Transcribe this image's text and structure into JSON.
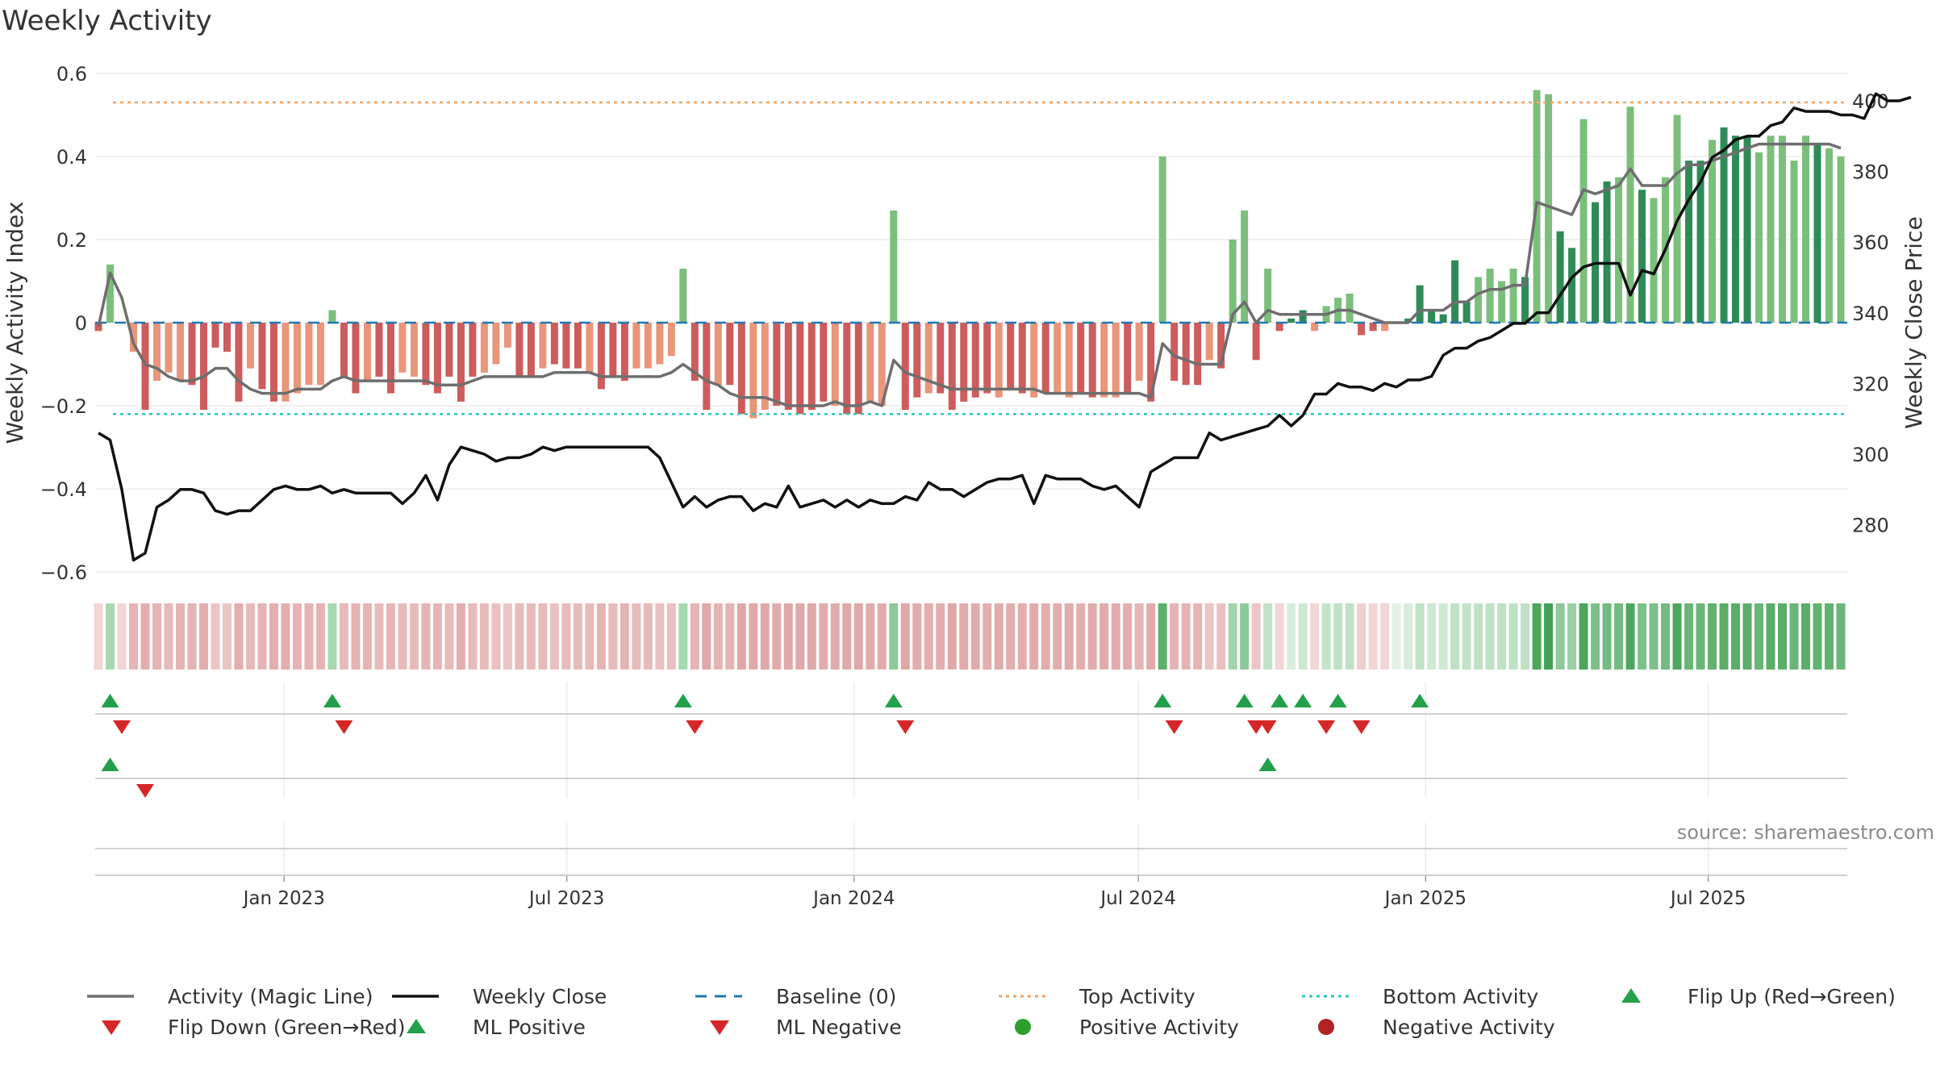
{
  "chart_data": {
    "type": "bar+line",
    "title": "Weekly Activity",
    "ylabel_left": "Weekly Activity Index",
    "ylabel_right": "Weekly Close Price",
    "ylim_left": [
      -0.62,
      0.6
    ],
    "ylim_right": [
      260,
      410
    ],
    "yticks_left": [
      0.6,
      0.4,
      0.2,
      0,
      -0.2,
      -0.4,
      -0.6
    ],
    "ytick_labels_left": [
      "0.6",
      "0.4",
      "0.2",
      "0",
      "−0.2",
      "−0.4",
      "−0.6"
    ],
    "yticks_right": [
      400,
      380,
      360,
      340,
      320,
      300,
      280
    ],
    "ytick_labels_right": [
      "400",
      "380",
      "360",
      "340",
      "320",
      "300",
      "280"
    ],
    "x_start": "2022-09-02",
    "x_end": "2025-09-28",
    "xticks": [
      {
        "date": "2023-01-01",
        "label": "Jan 2023"
      },
      {
        "date": "2023-07-01",
        "label": "Jul 2023"
      },
      {
        "date": "2024-01-01",
        "label": "Jan 2024"
      },
      {
        "date": "2024-07-01",
        "label": "Jul 2024"
      },
      {
        "date": "2025-01-01",
        "label": "Jan 2025"
      },
      {
        "date": "2025-07-01",
        "label": "Jul 2025"
      }
    ],
    "top_activity": 0.53,
    "bottom_activity": -0.22,
    "activity": [
      -0.02,
      0.14,
      0,
      -0.07,
      -0.21,
      -0.14,
      -0.12,
      -0.14,
      -0.15,
      -0.21,
      -0.06,
      -0.07,
      -0.19,
      -0.11,
      -0.16,
      -0.19,
      -0.19,
      -0.17,
      -0.15,
      -0.15,
      0.03,
      -0.13,
      -0.17,
      -0.14,
      -0.13,
      -0.17,
      -0.12,
      -0.13,
      -0.15,
      -0.17,
      -0.13,
      -0.19,
      -0.13,
      -0.12,
      -0.1,
      -0.06,
      -0.13,
      -0.13,
      -0.11,
      -0.1,
      -0.11,
      -0.11,
      -0.12,
      -0.16,
      -0.13,
      -0.14,
      -0.11,
      -0.11,
      -0.1,
      -0.08,
      0.13,
      -0.14,
      -0.21,
      -0.15,
      -0.15,
      -0.22,
      -0.23,
      -0.21,
      -0.2,
      -0.21,
      -0.22,
      -0.21,
      -0.19,
      -0.2,
      -0.22,
      -0.22,
      -0.19,
      -0.2,
      0.27,
      -0.21,
      -0.18,
      -0.17,
      -0.17,
      -0.21,
      -0.19,
      -0.18,
      -0.17,
      -0.18,
      -0.16,
      -0.17,
      -0.18,
      -0.17,
      -0.17,
      -0.18,
      -0.17,
      -0.18,
      -0.18,
      -0.18,
      -0.17,
      -0.14,
      -0.19,
      0.4,
      -0.14,
      -0.15,
      -0.15,
      -0.09,
      -0.11,
      0.2,
      0.27,
      -0.09,
      0.13,
      -0.02,
      0.01,
      0.03,
      -0.02,
      0.04,
      0.06,
      0.07,
      -0.03,
      -0.02,
      -0.02,
      0,
      0.01,
      0.09,
      0.03,
      0.02,
      0.15,
      0.05,
      0.11,
      0.13,
      0.1,
      0.13,
      0.11,
      0.56,
      0.55,
      0.22,
      0.18,
      0.49,
      0.29,
      0.34,
      0.35,
      0.52,
      0.32,
      0.3,
      0.35,
      0.5,
      0.39,
      0.39,
      0.44,
      0.47,
      0.45,
      0.45,
      0.41,
      0.45,
      0.45,
      0.39,
      0.45,
      0.43,
      0.42,
      0.4
    ],
    "magic_line": [
      -0.01,
      0.12,
      0.06,
      -0.05,
      -0.1,
      -0.11,
      -0.13,
      -0.14,
      -0.14,
      -0.13,
      -0.11,
      -0.11,
      -0.14,
      -0.16,
      -0.17,
      -0.17,
      -0.17,
      -0.16,
      -0.16,
      -0.16,
      -0.14,
      -0.13,
      -0.14,
      -0.14,
      -0.14,
      -0.14,
      -0.14,
      -0.14,
      -0.14,
      -0.15,
      -0.15,
      -0.15,
      -0.14,
      -0.13,
      -0.13,
      -0.13,
      -0.13,
      -0.13,
      -0.13,
      -0.12,
      -0.12,
      -0.12,
      -0.12,
      -0.13,
      -0.13,
      -0.13,
      -0.13,
      -0.13,
      -0.13,
      -0.12,
      -0.1,
      -0.12,
      -0.14,
      -0.15,
      -0.17,
      -0.18,
      -0.18,
      -0.18,
      -0.19,
      -0.2,
      -0.2,
      -0.2,
      -0.2,
      -0.19,
      -0.2,
      -0.2,
      -0.19,
      -0.2,
      -0.09,
      -0.12,
      -0.13,
      -0.14,
      -0.15,
      -0.16,
      -0.16,
      -0.16,
      -0.16,
      -0.16,
      -0.16,
      -0.16,
      -0.16,
      -0.17,
      -0.17,
      -0.17,
      -0.17,
      -0.17,
      -0.17,
      -0.17,
      -0.17,
      -0.17,
      -0.18,
      -0.05,
      -0.08,
      -0.09,
      -0.1,
      -0.1,
      -0.1,
      0.02,
      0.05,
      0,
      0.03,
      0.02,
      0.02,
      0.02,
      0.02,
      0.02,
      0.03,
      0.03,
      0.02,
      0.01,
      0,
      0,
      0,
      0.03,
      0.03,
      0.03,
      0.05,
      0.05,
      0.07,
      0.08,
      0.08,
      0.09,
      0.09,
      0.29,
      0.28,
      0.27,
      0.26,
      0.32,
      0.31,
      0.32,
      0.33,
      0.37,
      0.33,
      0.33,
      0.33,
      0.36,
      0.38,
      0.38,
      0.39,
      0.4,
      0.41,
      0.42,
      0.43,
      0.43,
      0.43,
      0.43,
      0.43,
      0.43,
      0.43,
      0.42
    ],
    "close": [
      306,
      304,
      290,
      270,
      272,
      285,
      287,
      290,
      290,
      289,
      284,
      283,
      284,
      284,
      287,
      290,
      291,
      290,
      290,
      291,
      289,
      290,
      289,
      289,
      289,
      289,
      286,
      289,
      294,
      287,
      297,
      302,
      301,
      300,
      298,
      299,
      299,
      300,
      302,
      301,
      302,
      302,
      302,
      302,
      302,
      302,
      302,
      302,
      299,
      292,
      285,
      288,
      285,
      287,
      288,
      288,
      284,
      286,
      285,
      291,
      285,
      286,
      287,
      285,
      287,
      285,
      287,
      286,
      286,
      288,
      287,
      292,
      290,
      290,
      288,
      290,
      292,
      293,
      293,
      294,
      286,
      294,
      293,
      293,
      293,
      291,
      290,
      291,
      288,
      285,
      295,
      297,
      299,
      299,
      299,
      306,
      304,
      305,
      306,
      307,
      308,
      311,
      308,
      311,
      317,
      317,
      320,
      319,
      319,
      318,
      320,
      319,
      321,
      321,
      322,
      328,
      330,
      330,
      332,
      333,
      335,
      337,
      337,
      340,
      340,
      345,
      350,
      353,
      354,
      354,
      354,
      345,
      352,
      351,
      358,
      366,
      372,
      377,
      384,
      386,
      389,
      390,
      390,
      393,
      394,
      398,
      397,
      397,
      397,
      396,
      396,
      395,
      402,
      400,
      400,
      401
    ],
    "heat_colors": [
      "#f2d6d6",
      "#a8d8b0",
      "#f2d6d6",
      "#e6b4b4",
      "#e4aeae",
      "#e6b4b4",
      "#e8bbbb",
      "#e6b4b4",
      "#e6b4b4",
      "#e4aeae",
      "#ecc5c5",
      "#ecc5c5",
      "#e4aeae",
      "#e8bbbb",
      "#e6b4b4",
      "#e4aeae",
      "#e4aeae",
      "#e6b4b4",
      "#e6b4b4",
      "#e6b4b4",
      "#a8d8b0",
      "#e8bbbb",
      "#e6b4b4",
      "#e6b4b4",
      "#e8bbbb",
      "#e6b4b4",
      "#e8bbbb",
      "#e8bbbb",
      "#e6b4b4",
      "#e6b4b4",
      "#e8bbbb",
      "#e4aeae",
      "#e8bbbb",
      "#e8bbbb",
      "#eac0c0",
      "#ecc5c5",
      "#e8bbbb",
      "#e8bbbb",
      "#e8bbbb",
      "#eac0c0",
      "#e8bbbb",
      "#e8bbbb",
      "#e8bbbb",
      "#e6b4b4",
      "#e8bbbb",
      "#e6b4b4",
      "#e8bbbb",
      "#e8bbbb",
      "#eac0c0",
      "#eac0c0",
      "#a8d8b0",
      "#e6b4b4",
      "#e0a8a8",
      "#e6b4b4",
      "#e6b4b4",
      "#e0a8a8",
      "#e0a8a8",
      "#e0a8a8",
      "#e2acac",
      "#e0a8a8",
      "#e0a8a8",
      "#e0a8a8",
      "#e2acac",
      "#e2acac",
      "#e0a8a8",
      "#e0a8a8",
      "#e2acac",
      "#e2acac",
      "#8ec99a",
      "#e0a8a8",
      "#e2acac",
      "#e4aeae",
      "#e4aeae",
      "#e0a8a8",
      "#e2acac",
      "#e2acac",
      "#e4aeae",
      "#e2acac",
      "#e4aeae",
      "#e4aeae",
      "#e2acac",
      "#e4aeae",
      "#e4aeae",
      "#e2acac",
      "#e4aeae",
      "#e2acac",
      "#e2acac",
      "#e2acac",
      "#e4aeae",
      "#e6b4b4",
      "#e2acac",
      "#5fb06c",
      "#e6b4b4",
      "#e6b4b4",
      "#e6b4b4",
      "#ecc5c5",
      "#eac0c0",
      "#a3d4ab",
      "#8ec99a",
      "#ecc5c5",
      "#bfe2c5",
      "#f2d6d6",
      "#d8eedc",
      "#cde9d2",
      "#f2d6d6",
      "#c4e4c9",
      "#bfe2c5",
      "#bfe2c5",
      "#f0cfcf",
      "#f2d6d6",
      "#f2d6d6",
      "#e4f2e6",
      "#d8eedc",
      "#bfe2c5",
      "#cde9d2",
      "#cde9d2",
      "#bfe2c5",
      "#c4e4c9",
      "#bfe2c5",
      "#bfe2c5",
      "#bfe2c5",
      "#bfe2c5",
      "#bfe2c5",
      "#4da65c",
      "#43a155",
      "#8ec99a",
      "#9bd0a4",
      "#4da65c",
      "#7dc08a",
      "#73bb80",
      "#73bb80",
      "#4da65c",
      "#7dc08a",
      "#7dc08a",
      "#73bb80",
      "#4da65c",
      "#6ab678",
      "#6ab678",
      "#62b270",
      "#5aae69",
      "#5aae69",
      "#5aae69",
      "#6ab678",
      "#5aae69",
      "#5aae69",
      "#6ab678",
      "#5aae69",
      "#62b270",
      "#62b270",
      "#6ab678"
    ],
    "bar_shades": [
      1,
      0,
      1,
      0,
      1,
      0,
      0,
      0,
      1,
      1,
      1,
      1,
      1,
      0,
      1,
      1,
      0,
      0,
      0,
      0,
      0,
      1,
      1,
      0,
      1,
      1,
      0,
      0,
      1,
      1,
      1,
      1,
      1,
      0,
      0,
      0,
      1,
      1,
      0,
      1,
      1,
      1,
      0,
      1,
      1,
      1,
      0,
      0,
      0,
      0,
      0,
      1,
      1,
      0,
      1,
      1,
      0,
      0,
      1,
      1,
      1,
      1,
      1,
      0,
      1,
      1,
      0,
      0,
      0,
      1,
      1,
      0,
      1,
      1,
      1,
      1,
      1,
      0,
      1,
      1,
      0,
      1,
      0,
      0,
      1,
      1,
      0,
      0,
      1,
      0,
      1,
      0,
      1,
      1,
      1,
      0,
      1,
      0,
      0,
      1,
      0,
      1,
      1,
      1,
      0,
      0,
      0,
      0,
      1,
      1,
      0,
      1,
      1,
      1,
      1,
      1,
      1,
      1,
      0,
      0,
      0,
      0,
      1,
      0,
      0,
      1,
      1,
      0,
      1,
      1,
      0,
      0,
      1,
      0,
      0,
      0,
      1,
      1,
      0,
      1,
      1,
      1,
      0,
      0,
      0,
      0,
      0,
      1,
      0,
      0,
      1,
      0
    ],
    "flip_up": [
      1,
      20,
      50,
      68,
      91,
      98,
      101,
      103,
      106,
      113
    ],
    "flip_down": [
      2,
      21,
      51,
      69,
      92,
      99,
      100,
      105,
      108
    ],
    "ml_positive": [
      1,
      100
    ],
    "ml_negative": [
      4
    ],
    "legend": [
      {
        "label": "Activity (Magic Line)",
        "symbol": "line",
        "color": "#6e6e6e"
      },
      {
        "label": "Weekly Close",
        "symbol": "line",
        "color": "#111111"
      },
      {
        "label": "Baseline (0)",
        "symbol": "dash",
        "color": "#1f77b4"
      },
      {
        "label": "Top Activity",
        "symbol": "dot",
        "color": "#f4a261"
      },
      {
        "label": "Bottom Activity",
        "symbol": "dot",
        "color": "#2ec4c4"
      },
      {
        "label": "Flip Up (Red→Green)",
        "symbol": "triangle-up",
        "color": "#23a04a"
      },
      {
        "label": "Flip Down (Green→Red)",
        "symbol": "triangle-down",
        "color": "#d62728"
      },
      {
        "label": "ML Positive",
        "symbol": "triangle-up",
        "color": "#23a04a"
      },
      {
        "label": "ML Negative",
        "symbol": "triangle-down",
        "color": "#d62728"
      },
      {
        "label": "Positive Activity",
        "symbol": "circle",
        "color": "#2ca02c"
      },
      {
        "label": "Negative Activity",
        "symbol": "circle",
        "color": "#b22222"
      }
    ],
    "source": "source: sharemaestro.com"
  },
  "colors": {
    "pos_dark": "#2e8b57",
    "pos_light": "#7cbf7c",
    "neg_dark": "#cd5c5c",
    "neg_light": "#e9967a",
    "magic_line": "#6e6e6e",
    "close_line": "#111111",
    "baseline": "#1f77b4",
    "top": "#f4a261",
    "bottom": "#2ec4c4",
    "grid": "#ececec",
    "up": "#23a04a",
    "down": "#d62728"
  }
}
